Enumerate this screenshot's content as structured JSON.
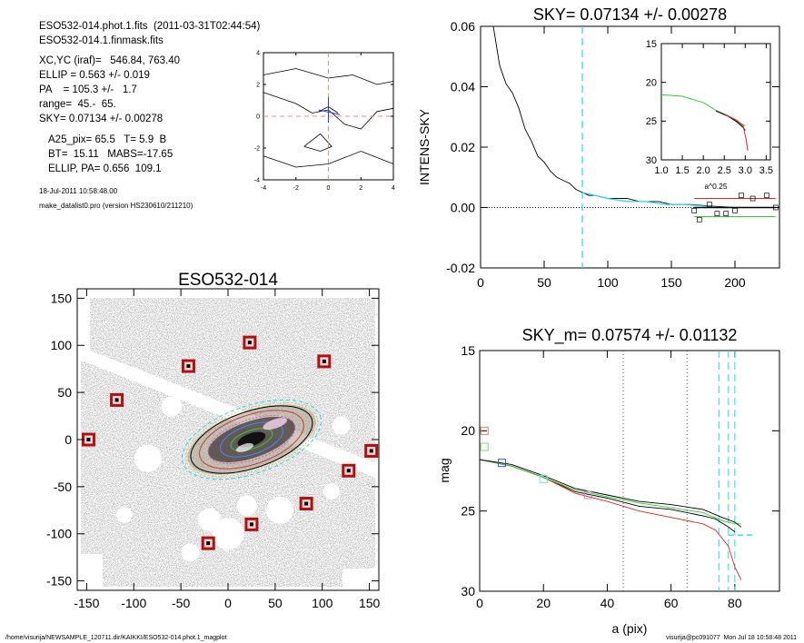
{
  "header": {
    "line1": "ESO532-014.phot.1.fits  (2011-03-31T02:44:54)",
    "line2": "ESO532-014.1.finmask.fits",
    "xcyc": "XC,YC (iraf)=   546.84, 763.40",
    "ellip": "ELLIP = 0.563 +/- 0.019",
    "pa": "PA    = 105.3 +/-   1.7",
    "range": "range=  45.-  65.",
    "sky": "SKY= 0.07134 +/- 0.00278",
    "a25": "A25_pix= 65.5   T= 5.9  B",
    "bt": "BT=  15.11   MABS=-17.65",
    "ellip_pa": "ELLIP, PA= 0.656  109.1",
    "date": "18-Jul-2011 10:58:48.00",
    "program": "make_datalist0.pro (version HS230610/211210)"
  },
  "footer": {
    "path": "/home/visurija/NEWSAMPLE_120711.dir/KAIKKI/ESO532-014.phot.1_magplot",
    "stamp": "visurija@pc091077  Mon Jul 18 10:58:48 2011"
  },
  "colors": {
    "cyan": "#22d8ee",
    "red": "#e52222",
    "green": "#33cc33",
    "blue": "#2244cc",
    "image_gray": "#6e6e6e"
  },
  "chart_data": [
    {
      "type": "line",
      "id": "small-contour",
      "title": "",
      "xlim": [
        -4,
        4
      ],
      "ylim": [
        -4,
        4
      ],
      "x_ticks": [
        "-4",
        "-2",
        "0",
        "2",
        "4"
      ],
      "y_ticks": [
        "-4",
        "-2",
        "0",
        "2",
        "4"
      ],
      "crosshair": [
        0,
        0
      ]
    },
    {
      "type": "line",
      "id": "sky-profile",
      "title": "SKY= 0.07134 +/- 0.00278",
      "xlabel": "",
      "ylabel": "INTENS-SKY",
      "xlim": [
        0,
        235
      ],
      "ylim": [
        -0.02,
        0.06
      ],
      "x_ticks": [
        "0",
        "50",
        "100",
        "150",
        "200"
      ],
      "y_ticks": [
        "-0.02",
        "0.00",
        "0.02",
        "0.04",
        "0.06"
      ],
      "vline": 80,
      "series": [
        {
          "values": [
            [
              10,
              0.06
            ],
            [
              15,
              0.047
            ],
            [
              20,
              0.041
            ],
            [
              25,
              0.038
            ],
            [
              30,
              0.033
            ],
            [
              35,
              0.026
            ],
            [
              40,
              0.022
            ],
            [
              45,
              0.017
            ],
            [
              50,
              0.015
            ],
            [
              55,
              0.012
            ],
            [
              60,
              0.01
            ],
            [
              65,
              0.009
            ],
            [
              70,
              0.008
            ],
            [
              75,
              0.006
            ],
            [
              80,
              0.005
            ],
            [
              85,
              0.004
            ],
            [
              90,
              0.004
            ],
            [
              100,
              0.003
            ],
            [
              115,
              0.003
            ],
            [
              125,
              0.002
            ],
            [
              140,
              0.002
            ],
            [
              150,
              0.001
            ],
            [
              165,
              0.001
            ],
            [
              180,
              0.0005
            ],
            [
              200,
              0.0
            ],
            [
              210,
              0.0
            ]
          ]
        },
        {
          "values": [
            [
              80,
              0.005
            ],
            [
              90,
              0.004
            ],
            [
              100,
              0.003
            ],
            [
              115,
              0.002
            ],
            [
              130,
              0.002
            ],
            [
              145,
              0.001
            ],
            [
              160,
              0.001
            ],
            [
              175,
              0.0005
            ],
            [
              190,
              0.0
            ],
            [
              210,
              0.0
            ]
          ]
        }
      ],
      "sky_points": [
        [
          168,
          -0.001
        ],
        [
          172,
          -0.004
        ],
        [
          180,
          0.001
        ],
        [
          186,
          -0.002
        ],
        [
          193,
          -0.002
        ],
        [
          200,
          -0.001
        ],
        [
          205,
          0.004
        ],
        [
          214,
          0.003
        ],
        [
          225,
          0.004
        ],
        [
          232,
          0.0
        ]
      ],
      "sky_levels": {
        "red": 0.003,
        "black": 0.0,
        "green": -0.003
      }
    },
    {
      "type": "line",
      "id": "sky-inset",
      "title": "",
      "xlabel": "a^0.25",
      "xlim": [
        1.0,
        3.6
      ],
      "ylim": [
        30,
        15
      ],
      "x_ticks": [
        "1.0",
        "1.5",
        "2.0",
        "2.5",
        "3.0",
        "3.5"
      ],
      "y_ticks": [
        "15",
        "20",
        "25",
        "30"
      ],
      "series": [
        {
          "values": [
            [
              1.0,
              21.6
            ],
            [
              1.5,
              21.8
            ],
            [
              2.0,
              22.6
            ],
            [
              2.3,
              23.6
            ],
            [
              2.6,
              24.3
            ],
            [
              2.8,
              25.0
            ],
            [
              3.0,
              25.6
            ]
          ]
        }
      ]
    },
    {
      "type": "line",
      "id": "magnitude-profile",
      "title": "SKY_m=  0.07574 +/- 0.01132",
      "xlabel": "a (pix)",
      "ylabel": "mag",
      "xlim": [
        0,
        94
      ],
      "ylim": [
        30,
        15
      ],
      "x_ticks": [
        "0",
        "20",
        "40",
        "60",
        "80"
      ],
      "y_ticks": [
        "15",
        "20",
        "25",
        "30"
      ],
      "dotted_vlines": [
        45,
        65
      ],
      "cyan_vlines": [
        75,
        78,
        80
      ],
      "markers": [
        {
          "x": 1.5,
          "y": 20.0,
          "color": "#e37777"
        },
        {
          "x": 1.5,
          "y": 21.0,
          "color": "#77dd77"
        },
        {
          "x": 7,
          "y": 22.0,
          "color": "#3355cc"
        },
        {
          "x": 20,
          "y": 23.0,
          "color": "#77dddd"
        },
        {
          "x": 34,
          "y": 24.0,
          "color": "#cc88cc"
        }
      ],
      "series": [
        {
          "values": [
            [
              0,
              21.8
            ],
            [
              10,
              22.2
            ],
            [
              20,
              22.9
            ],
            [
              30,
              23.8
            ],
            [
              40,
              24.2
            ],
            [
              50,
              24.7
            ],
            [
              60,
              24.9
            ],
            [
              70,
              25.3
            ],
            [
              74,
              25.5
            ],
            [
              78,
              26.0
            ],
            [
              80,
              26.3
            ]
          ]
        },
        {
          "values": [
            [
              0,
              21.8
            ],
            [
              10,
              22.2
            ],
            [
              20,
              22.9
            ],
            [
              30,
              23.9
            ],
            [
              40,
              24.4
            ],
            [
              50,
              25.0
            ],
            [
              60,
              25.4
            ],
            [
              70,
              25.8
            ],
            [
              74,
              26.2
            ],
            [
              78,
              27.2
            ],
            [
              80,
              28.5
            ],
            [
              82,
              29.3
            ]
          ]
        },
        {
          "values": [
            [
              0,
              21.8
            ],
            [
              10,
              22.2
            ],
            [
              20,
              22.9
            ],
            [
              30,
              23.7
            ],
            [
              40,
              24.1
            ],
            [
              50,
              24.5
            ],
            [
              60,
              24.8
            ],
            [
              70,
              25.1
            ],
            [
              76,
              25.6
            ],
            [
              80,
              25.8
            ],
            [
              82,
              25.8
            ]
          ]
        },
        {
          "values": [
            [
              0,
              21.8
            ],
            [
              10,
              22.1
            ],
            [
              20,
              22.8
            ],
            [
              30,
              23.6
            ],
            [
              40,
              24.0
            ],
            [
              50,
              24.4
            ],
            [
              60,
              24.6
            ],
            [
              70,
              24.9
            ],
            [
              76,
              25.4
            ],
            [
              80,
              25.7
            ],
            [
              82,
              26.0
            ]
          ]
        }
      ],
      "sky_level": 26.5
    },
    {
      "type": "scatter",
      "id": "galaxy-image",
      "title": "ESO532-014",
      "xlim": [
        -160,
        160
      ],
      "ylim": [
        -160,
        160
      ],
      "x_ticks": [
        "-150",
        "-100",
        "-50",
        "0",
        "50",
        "100",
        "150"
      ],
      "y_ticks": [
        "-150",
        "-100",
        "-50",
        "0",
        "50",
        "100",
        "150"
      ],
      "masked_stars": [
        [
          -148,
          0
        ],
        [
          -118,
          42
        ],
        [
          -42,
          78
        ],
        [
          23,
          103
        ],
        [
          102,
          83
        ],
        [
          152,
          -12
        ],
        [
          128,
          -33
        ],
        [
          83,
          -68
        ],
        [
          25,
          -90
        ],
        [
          -21,
          -110
        ]
      ],
      "ellipse_center": [
        25,
        0
      ],
      "ellipse_pa_deg": 109
    }
  ]
}
